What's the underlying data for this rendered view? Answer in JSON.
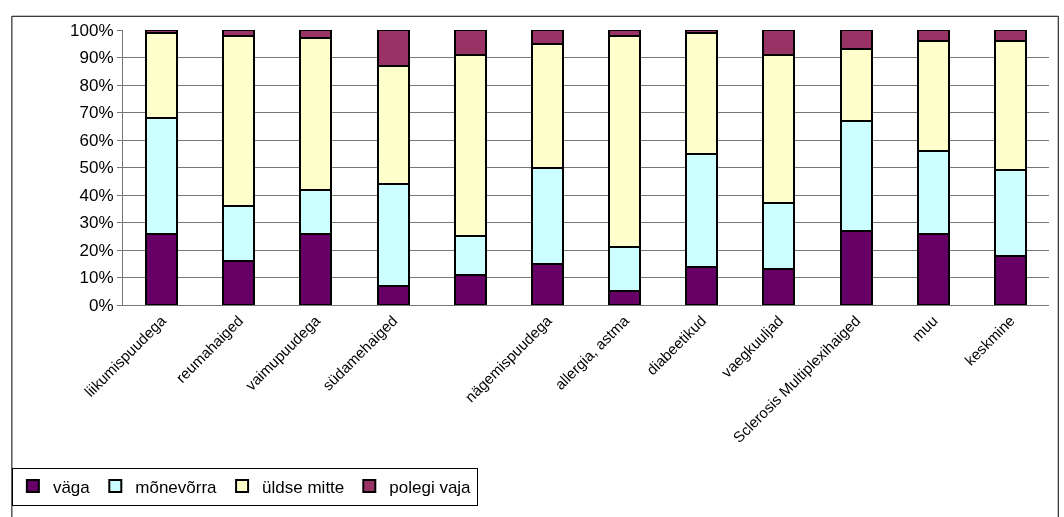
{
  "chart_data": {
    "type": "bar",
    "stacked": true,
    "categories": [
      "liikumispuudega",
      "reumahaiged",
      "vaimupuudega",
      "südamehaiged",
      null,
      "nägemispuudega",
      "allergia, astma",
      "diabeetikud",
      "vaegkuuljad",
      "Sclerosis Multiplexihaiged",
      "muu",
      "keskmine"
    ],
    "series": [
      {
        "name": "väga",
        "color": "#660066",
        "values": [
          26,
          16,
          26,
          7,
          11,
          15,
          5,
          14,
          13,
          27,
          26,
          18
        ]
      },
      {
        "name": "mõnevõrra",
        "color": "#ccffff",
        "values": [
          42,
          20,
          16,
          37,
          14,
          35,
          16,
          41,
          24,
          40,
          30,
          31
        ]
      },
      {
        "name": "üldse mitte",
        "color": "#ffffcc",
        "values": [
          31,
          62,
          55,
          43,
          66,
          45,
          77,
          44,
          54,
          26,
          40,
          47
        ]
      },
      {
        "name": "polegi vaja",
        "color": "#993366",
        "values": [
          1,
          2,
          3,
          13,
          9,
          5,
          2,
          1,
          9,
          7,
          4,
          4
        ]
      }
    ],
    "ylim": [
      0,
      100
    ],
    "yticks": [
      {
        "value": 0,
        "label": "0%"
      },
      {
        "value": 10,
        "label": "10%"
      },
      {
        "value": 20,
        "label": "20%"
      },
      {
        "value": 30,
        "label": "30%"
      },
      {
        "value": 40,
        "label": "40%"
      },
      {
        "value": 50,
        "label": "50%"
      },
      {
        "value": 60,
        "label": "60%"
      },
      {
        "value": 70,
        "label": "70%"
      },
      {
        "value": 80,
        "label": "80%"
      },
      {
        "value": 90,
        "label": "90%"
      },
      {
        "value": 100,
        "label": "100%"
      }
    ],
    "grid": "y",
    "legend": "bottom left"
  }
}
